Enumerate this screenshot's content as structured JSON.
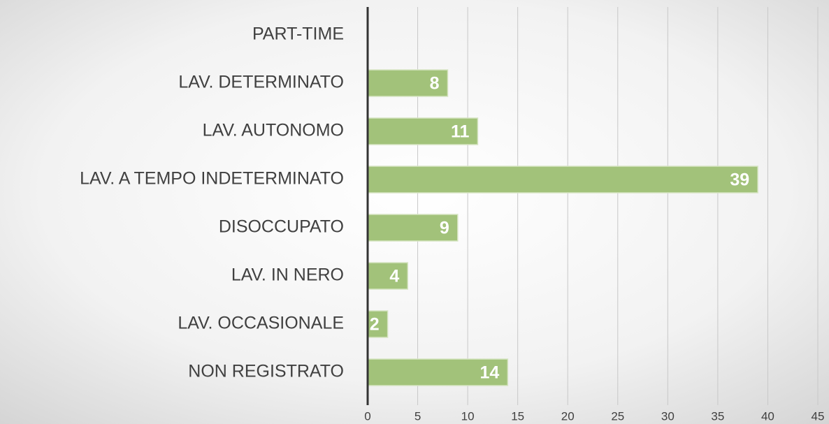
{
  "chart_data": {
    "type": "bar",
    "orientation": "horizontal",
    "categories": [
      "PART-TIME",
      "LAV. DETERMINATO",
      "LAV. AUTONOMO",
      "LAV. A TEMPO INDETERMINATO",
      "DISOCCUPATO",
      "LAV. IN NERO",
      "LAV. OCCASIONALE",
      "NON REGISTRATO"
    ],
    "values": [
      null,
      8,
      11,
      39,
      9,
      4,
      2,
      14
    ],
    "color": "#a2c27a",
    "xlim": [
      0,
      45
    ],
    "xticks": [
      0,
      5,
      10,
      15,
      20,
      25,
      30,
      35,
      40,
      45
    ],
    "grid": true
  }
}
